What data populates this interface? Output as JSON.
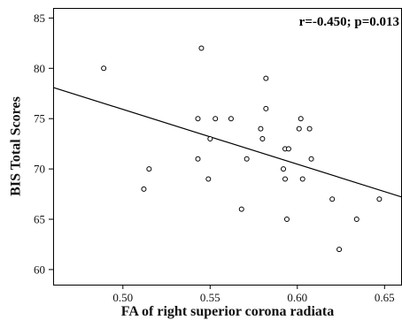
{
  "chart_data": {
    "type": "scatter",
    "xlabel": "FA of right superior corona radiata",
    "ylabel": "BIS Total Scores",
    "annotation": "r=-0.450; p=0.013",
    "xlim": [
      0.46,
      0.66
    ],
    "ylim": [
      58.5,
      86
    ],
    "xticks": [
      0.5,
      0.55,
      0.6,
      0.65
    ],
    "xtick_labels": [
      "0.50",
      "0.55",
      "0.60",
      "0.65"
    ],
    "yticks": [
      60,
      65,
      70,
      75,
      80,
      85
    ],
    "ytick_labels": [
      "60",
      "65",
      "70",
      "75",
      "80",
      "85"
    ],
    "grid": false,
    "points": [
      {
        "x": 0.489,
        "y": 80
      },
      {
        "x": 0.512,
        "y": 68
      },
      {
        "x": 0.515,
        "y": 70
      },
      {
        "x": 0.543,
        "y": 71
      },
      {
        "x": 0.543,
        "y": 75
      },
      {
        "x": 0.545,
        "y": 82
      },
      {
        "x": 0.549,
        "y": 69
      },
      {
        "x": 0.55,
        "y": 73
      },
      {
        "x": 0.553,
        "y": 75
      },
      {
        "x": 0.562,
        "y": 75
      },
      {
        "x": 0.568,
        "y": 66
      },
      {
        "x": 0.571,
        "y": 71
      },
      {
        "x": 0.579,
        "y": 74
      },
      {
        "x": 0.58,
        "y": 73
      },
      {
        "x": 0.582,
        "y": 79
      },
      {
        "x": 0.582,
        "y": 76
      },
      {
        "x": 0.592,
        "y": 70
      },
      {
        "x": 0.593,
        "y": 72
      },
      {
        "x": 0.593,
        "y": 69
      },
      {
        "x": 0.594,
        "y": 65
      },
      {
        "x": 0.595,
        "y": 72
      },
      {
        "x": 0.601,
        "y": 74
      },
      {
        "x": 0.602,
        "y": 75
      },
      {
        "x": 0.603,
        "y": 69
      },
      {
        "x": 0.607,
        "y": 74
      },
      {
        "x": 0.608,
        "y": 71
      },
      {
        "x": 0.62,
        "y": 67
      },
      {
        "x": 0.624,
        "y": 62
      },
      {
        "x": 0.634,
        "y": 65
      },
      {
        "x": 0.647,
        "y": 67
      }
    ],
    "fit_line": {
      "x": [
        0.46,
        0.66
      ],
      "y": [
        78.1,
        67.2
      ]
    }
  }
}
